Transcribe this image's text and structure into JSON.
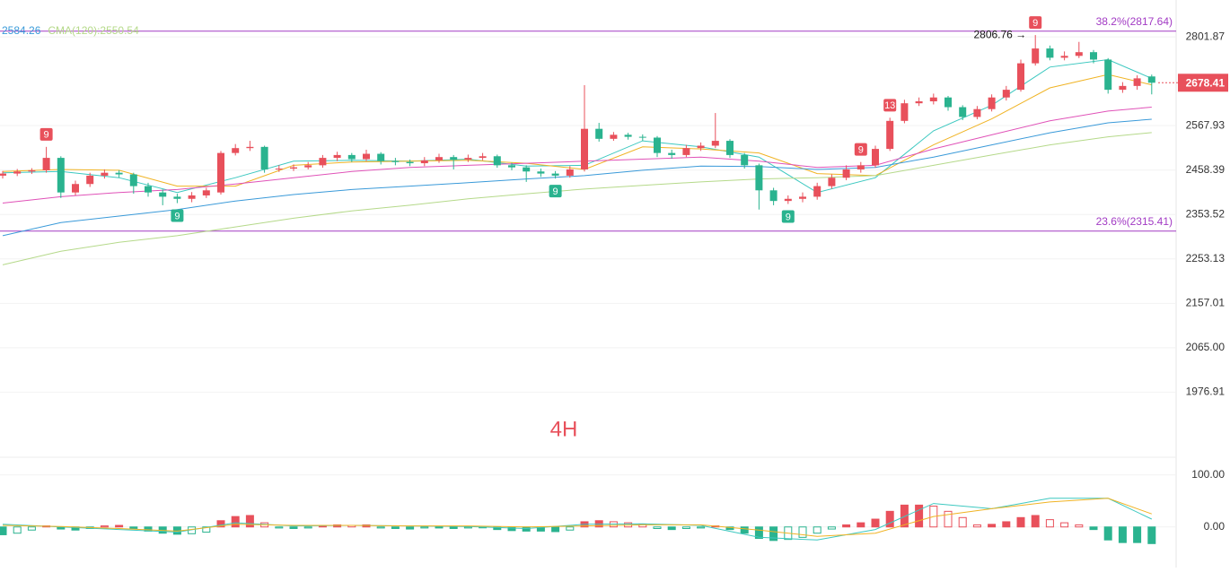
{
  "chart_data": {
    "type": "candlestick",
    "timeframe": "4H",
    "timeframe_color": "#e8505b",
    "log_scale": true,
    "grid": true,
    "up_color": "#e8505b",
    "down_color": "#2ab38f",
    "ylim": [
      1871,
      2905
    ],
    "yticks": [
      2801.87,
      2567.93,
      2458.39,
      2353.52,
      2253.13,
      2157.01,
      {
        "value": 2065,
        "label": "2065.00"
      },
      1976.91
    ],
    "last_price": 2678.41,
    "candles": {
      "open": [
        2445,
        2450,
        2455,
        2458,
        2488,
        2405,
        2425,
        2445,
        2452,
        2448,
        2420,
        2405,
        2395,
        2390,
        2398,
        2405,
        2500,
        2512,
        2515,
        2460,
        2462,
        2465,
        2470,
        2488,
        2495,
        2485,
        2498,
        2480,
        2478,
        2475,
        2482,
        2490,
        2484,
        2488,
        2492,
        2470,
        2465,
        2455,
        2450,
        2445,
        2460,
        2560,
        2535,
        2545,
        2540,
        2538,
        2500,
        2495,
        2512,
        2518,
        2530,
        2495,
        2470,
        2410,
        2385,
        2390,
        2395,
        2420,
        2440,
        2460,
        2470,
        2510,
        2580,
        2625,
        2630,
        2640,
        2615,
        2590,
        2610,
        2640,
        2660,
        2730,
        2770,
        2745,
        2750,
        2760,
        2740,
        2660,
        2670,
        2695
      ],
      "high": [
        2456,
        2461,
        2463,
        2515,
        2492,
        2433,
        2452,
        2460,
        2458,
        2452,
        2428,
        2412,
        2402,
        2406,
        2416,
        2505,
        2522,
        2530,
        2518,
        2470,
        2472,
        2478,
        2495,
        2503,
        2500,
        2508,
        2502,
        2488,
        2484,
        2490,
        2498,
        2495,
        2496,
        2500,
        2496,
        2476,
        2470,
        2462,
        2456,
        2468,
        2672,
        2575,
        2552,
        2550,
        2546,
        2542,
        2508,
        2520,
        2526,
        2600,
        2534,
        2500,
        2474,
        2416,
        2398,
        2405,
        2428,
        2448,
        2470,
        2478,
        2518,
        2588,
        2634,
        2640,
        2650,
        2644,
        2620,
        2618,
        2648,
        2670,
        2740,
        2806.76,
        2778,
        2762,
        2788,
        2766,
        2744,
        2680,
        2698,
        2700
      ],
      "low": [
        2438,
        2444,
        2449,
        2452,
        2392,
        2398,
        2418,
        2438,
        2440,
        2402,
        2395,
        2375,
        2380,
        2382,
        2392,
        2400,
        2494,
        2505,
        2452,
        2454,
        2456,
        2460,
        2464,
        2480,
        2478,
        2480,
        2472,
        2470,
        2468,
        2468,
        2476,
        2460,
        2478,
        2482,
        2464,
        2458,
        2430,
        2442,
        2438,
        2440,
        2455,
        2528,
        2530,
        2533,
        2530,
        2490,
        2486,
        2490,
        2505,
        2512,
        2488,
        2462,
        2365,
        2375,
        2378,
        2382,
        2388,
        2414,
        2434,
        2452,
        2464,
        2505,
        2574,
        2618,
        2622,
        2606,
        2582,
        2584,
        2604,
        2632,
        2655,
        2724,
        2738,
        2738,
        2744,
        2730,
        2650,
        2652,
        2660,
        2648
      ],
      "close": [
        2450,
        2455,
        2458,
        2488,
        2405,
        2425,
        2445,
        2452,
        2448,
        2420,
        2405,
        2395,
        2390,
        2398,
        2410,
        2500,
        2512,
        2515,
        2460,
        2462,
        2465,
        2470,
        2488,
        2495,
        2485,
        2498,
        2480,
        2478,
        2475,
        2482,
        2490,
        2484,
        2488,
        2492,
        2470,
        2465,
        2455,
        2450,
        2445,
        2460,
        2560,
        2535,
        2545,
        2540,
        2538,
        2500,
        2495,
        2512,
        2518,
        2530,
        2495,
        2470,
        2410,
        2385,
        2390,
        2395,
        2420,
        2440,
        2460,
        2470,
        2510,
        2580,
        2625,
        2630,
        2640,
        2615,
        2590,
        2610,
        2640,
        2660,
        2730,
        2770,
        2745,
        2750,
        2760,
        2740,
        2660,
        2670,
        2690,
        2678.41
      ]
    },
    "ma_x": [
      0,
      4,
      8,
      12,
      16,
      20,
      24,
      28,
      32,
      36,
      40,
      44,
      48,
      52,
      56,
      60,
      64,
      68,
      72,
      76,
      79
    ],
    "ma": [
      {
        "color": "#3cc8c0",
        "values": [
          2452,
          2455,
          2440,
          2405,
          2440,
          2480,
          2482,
          2480,
          2485,
          2468,
          2470,
          2530,
          2515,
          2490,
          2405,
          2440,
          2555,
          2620,
          2720,
          2740,
          2690
        ]
      },
      {
        "color": "#f0b323",
        "values": [
          2455,
          2460,
          2458,
          2420,
          2420,
          2470,
          2478,
          2480,
          2482,
          2475,
          2460,
          2515,
          2510,
          2500,
          2450,
          2445,
          2520,
          2585,
          2665,
          2700,
          2673
        ]
      },
      {
        "color": "#e052b8",
        "values": [
          2380,
          2395,
          2405,
          2412,
          2425,
          2440,
          2455,
          2465,
          2470,
          2475,
          2480,
          2485,
          2490,
          2480,
          2465,
          2470,
          2510,
          2545,
          2580,
          2605,
          2615
        ]
      },
      {
        "color": "#3a9ad9",
        "values": [
          2305,
          2335,
          2350,
          2365,
          2385,
          2400,
          2412,
          2420,
          2428,
          2437,
          2445,
          2458,
          2468,
          2467,
          2460,
          2465,
          2490,
          2520,
          2550,
          2575,
          2584.26
        ]
      },
      {
        "color": "#b5d98a",
        "values": [
          2240,
          2270,
          2290,
          2305,
          2325,
          2345,
          2362,
          2375,
          2390,
          2402,
          2413,
          2422,
          2430,
          2437,
          2440,
          2445,
          2470,
          2495,
          2520,
          2540,
          2550.54
        ]
      }
    ],
    "ma_labels": [
      {
        "text": "2584.26",
        "color": "#3a9ad9"
      },
      {
        "text": "CMA(120):2550.54",
        "color": "#b5d98a"
      }
    ],
    "levels": [
      {
        "value": 2817.64,
        "label": "38.2%(2817.64)",
        "color": "#a23bc4"
      },
      {
        "value": 2315.41,
        "label": "23.6%(2315.41)",
        "color": "#a23bc4"
      }
    ],
    "peak": {
      "index": 71,
      "label": "2806.76 →"
    },
    "td_marks": [
      {
        "index": 3,
        "label": "9",
        "side": "above"
      },
      {
        "index": 12,
        "label": "9",
        "side": "below"
      },
      {
        "index": 38,
        "label": "9",
        "side": "below"
      },
      {
        "index": 54,
        "label": "9",
        "side": "below"
      },
      {
        "index": 59,
        "label": "9",
        "side": "above"
      },
      {
        "index": 61,
        "label": "13",
        "side": "above"
      },
      {
        "index": 71,
        "label": "9",
        "side": "above"
      }
    ],
    "macd": {
      "ylim": [
        -78,
        134
      ],
      "yticks": [
        {
          "value": 100,
          "label": "100.00"
        },
        {
          "value": 0,
          "label": "0.00"
        }
      ],
      "histogram": [
        -15,
        -12,
        -6,
        2,
        -4,
        -6,
        -3,
        2,
        3,
        -3,
        -8,
        -12,
        -14,
        -13,
        -10,
        12,
        20,
        22,
        8,
        -2,
        -3,
        -2,
        3,
        4,
        3,
        4,
        -2,
        -3,
        -4,
        -2,
        -2,
        -3,
        -2,
        -1,
        -5,
        -7,
        -8,
        -8,
        -9,
        -6,
        10,
        12,
        10,
        8,
        5,
        -3,
        -5,
        -3,
        -2,
        2,
        -5,
        -12,
        -22,
        -26,
        -24,
        -20,
        -12,
        -4,
        4,
        8,
        15,
        30,
        42,
        42,
        40,
        30,
        18,
        4,
        5,
        10,
        18,
        22,
        14,
        8,
        4,
        -5,
        -25,
        -30,
        -30,
        -32
      ],
      "dif": {
        "color": "#3cc8c0",
        "values": [
          5,
          0,
          -5,
          -10,
          8,
          2,
          3,
          2,
          1,
          -3,
          5,
          6,
          3,
          -20,
          -25,
          -5,
          45,
          35,
          55,
          55,
          15
        ]
      },
      "dea": {
        "color": "#f0b323",
        "values": [
          3,
          1,
          -3,
          -8,
          5,
          3,
          3,
          2,
          2,
          0,
          2,
          4,
          4,
          -6,
          -18,
          -12,
          20,
          35,
          48,
          55,
          25
        ]
      }
    }
  }
}
